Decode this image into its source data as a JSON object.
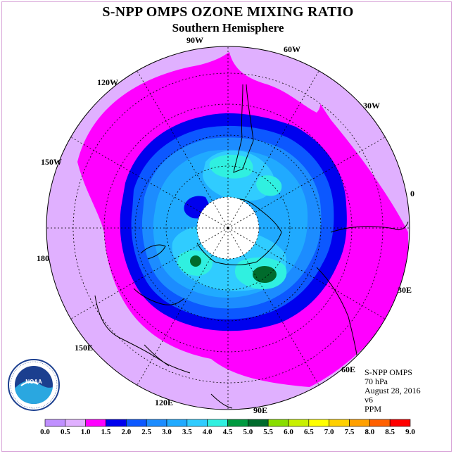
{
  "title": "S-NPP OMPS OZONE MIXING RATIO",
  "subtitle": "Southern Hemisphere",
  "longitude_labels": {
    "w90": "90W",
    "w60": "60W",
    "w30": "30W",
    "e0": "0",
    "e30": "30E",
    "e60": "60E",
    "e90": "90E",
    "e120": "120E",
    "e150": "150E",
    "e180": "180",
    "w150": "150W",
    "w120": "120W"
  },
  "info": {
    "instrument": "S-NPP OMPS",
    "level": "70 hPa",
    "date": "August 28, 2016",
    "version": "v6",
    "units": "PPM"
  },
  "logo": {
    "text": "NOAA",
    "icon": "noaa-logo"
  },
  "colorbar": {
    "ticks": [
      "0.0",
      "0.5",
      "1.0",
      "1.5",
      "2.0",
      "2.5",
      "3.0",
      "3.5",
      "4.0",
      "4.5",
      "5.0",
      "5.5",
      "6.0",
      "6.5",
      "7.0",
      "7.5",
      "8.0",
      "8.5",
      "9.0"
    ],
    "colors": [
      "#c090ff",
      "#e0b0ff",
      "#ff00ff",
      "#0000ee",
      "#0c58ff",
      "#1c8cff",
      "#20aaff",
      "#30ccff",
      "#30f0e0",
      "#009a40",
      "#006b2c",
      "#88dd00",
      "#c8f000",
      "#ffff00",
      "#ffd000",
      "#ffa000",
      "#ff6000",
      "#ff0000",
      "#996644"
    ]
  }
}
